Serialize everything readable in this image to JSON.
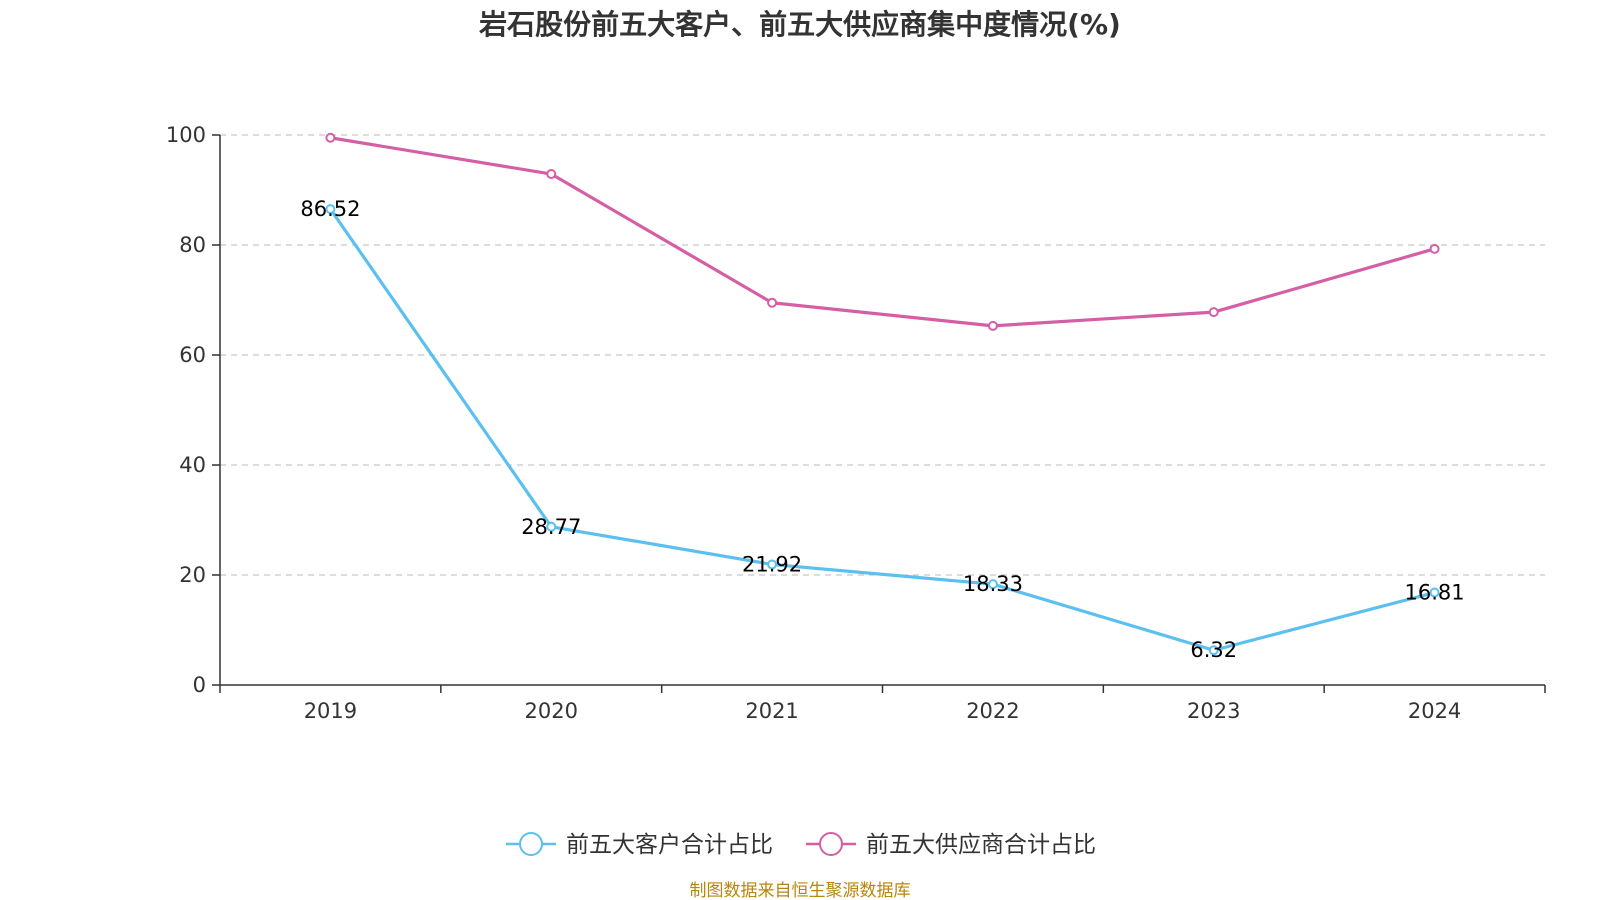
{
  "chart_data": {
    "type": "line",
    "title": "岩石股份前五大客户、前五大供应商集中度情况(%)",
    "categories": [
      "2019",
      "2020",
      "2021",
      "2022",
      "2023",
      "2024"
    ],
    "y_ticks": [
      "0",
      "20",
      "40",
      "60",
      "80",
      "100"
    ],
    "ylim": [
      0,
      100
    ],
    "grid": true,
    "legend_position": "bottom",
    "series": [
      {
        "name": "前五大客户合计占比",
        "color": "#5bc0f0",
        "values": [
          86.52,
          28.77,
          21.92,
          18.33,
          6.32,
          16.81
        ],
        "labels": [
          "86.52",
          "28.77",
          "21.92",
          "18.33",
          "6.32",
          "16.81"
        ]
      },
      {
        "name": "前五大供应商合计占比",
        "color": "#d45fa5",
        "values": [
          99.5,
          92.9,
          69.5,
          65.3,
          67.8,
          79.3
        ],
        "labels": []
      }
    ],
    "source": "制图数据来自恒生聚源数据库"
  }
}
